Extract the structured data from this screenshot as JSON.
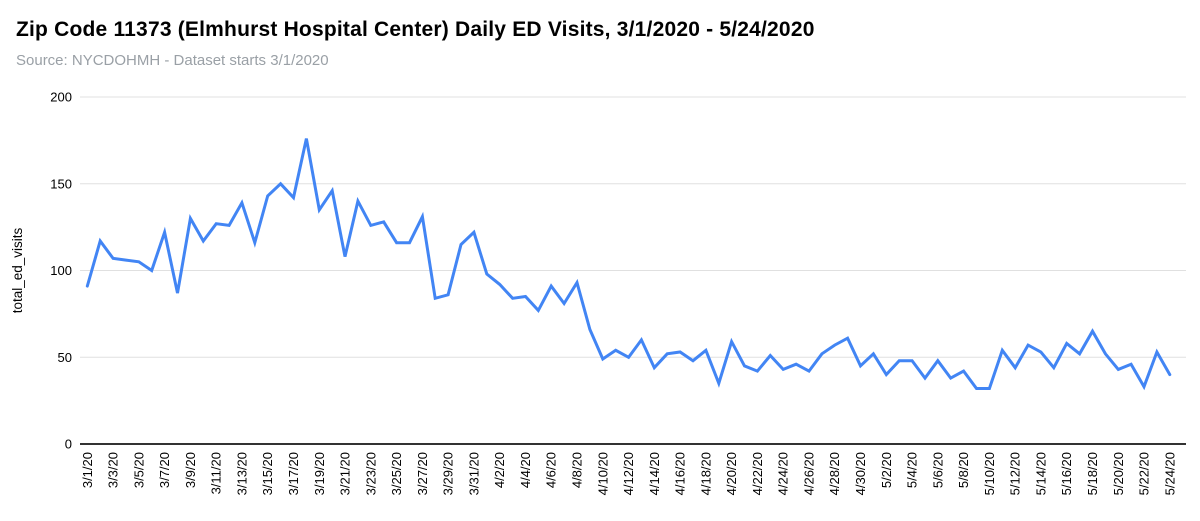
{
  "header": {
    "title": "Zip Code 11373 (Elmhurst Hospital Center) Daily ED Visits, 3/1/2020 - 5/24/2020",
    "subtitle": "Source: NYCDOHMH - Dataset starts 3/1/2020"
  },
  "chart_data": {
    "type": "line",
    "title": "Zip Code 11373 (Elmhurst Hospital Center) Daily ED Visits, 3/1/2020 - 5/24/2020",
    "xlabel": "",
    "ylabel": "total_ed_visits",
    "ylim": [
      0,
      200
    ],
    "yticks": [
      0,
      50,
      100,
      150,
      200
    ],
    "grid": true,
    "legend_position": "none",
    "x_tick_every": 2,
    "colors": {
      "line": "#4285f4",
      "gridline": "#e0e0e0",
      "axis_line": "#333333",
      "tick_label": "#000000",
      "axis_title": "#000000"
    },
    "x": [
      "3/1/20",
      "3/2/20",
      "3/3/20",
      "3/4/20",
      "3/5/20",
      "3/6/20",
      "3/7/20",
      "3/8/20",
      "3/9/20",
      "3/10/20",
      "3/11/20",
      "3/12/20",
      "3/13/20",
      "3/14/20",
      "3/15/20",
      "3/16/20",
      "3/17/20",
      "3/18/20",
      "3/19/20",
      "3/20/20",
      "3/21/20",
      "3/22/20",
      "3/23/20",
      "3/24/20",
      "3/25/20",
      "3/26/20",
      "3/27/20",
      "3/28/20",
      "3/29/20",
      "3/30/20",
      "3/31/20",
      "4/1/20",
      "4/2/20",
      "4/3/20",
      "4/4/20",
      "4/5/20",
      "4/6/20",
      "4/7/20",
      "4/8/20",
      "4/9/20",
      "4/10/20",
      "4/11/20",
      "4/12/20",
      "4/13/20",
      "4/14/20",
      "4/15/20",
      "4/16/20",
      "4/17/20",
      "4/18/20",
      "4/19/20",
      "4/20/20",
      "4/21/20",
      "4/22/20",
      "4/23/20",
      "4/24/20",
      "4/25/20",
      "4/26/20",
      "4/27/20",
      "4/28/20",
      "4/29/20",
      "4/30/20",
      "5/1/20",
      "5/2/20",
      "5/3/20",
      "5/4/20",
      "5/5/20",
      "5/6/20",
      "5/7/20",
      "5/8/20",
      "5/9/20",
      "5/10/20",
      "5/11/20",
      "5/12/20",
      "5/13/20",
      "5/14/20",
      "5/15/20",
      "5/16/20",
      "5/17/20",
      "5/18/20",
      "5/19/20",
      "5/20/20",
      "5/21/20",
      "5/22/20",
      "5/23/20",
      "5/24/20"
    ],
    "values": [
      91,
      117,
      107,
      106,
      105,
      100,
      122,
      87,
      130,
      117,
      127,
      126,
      139,
      116,
      143,
      150,
      142,
      176,
      135,
      146,
      108,
      140,
      126,
      128,
      116,
      116,
      131,
      84,
      86,
      115,
      122,
      98,
      92,
      84,
      85,
      77,
      91,
      81,
      93,
      66,
      49,
      54,
      50,
      60,
      44,
      52,
      53,
      48,
      54,
      35,
      59,
      45,
      42,
      51,
      43,
      46,
      42,
      52,
      57,
      61,
      45,
      52,
      40,
      48,
      48,
      38,
      48,
      38,
      42,
      32,
      32,
      54,
      44,
      57,
      53,
      44,
      58,
      52,
      65,
      52,
      43,
      46,
      33,
      53,
      40
    ]
  },
  "layout_note": "single line chart, no legend"
}
